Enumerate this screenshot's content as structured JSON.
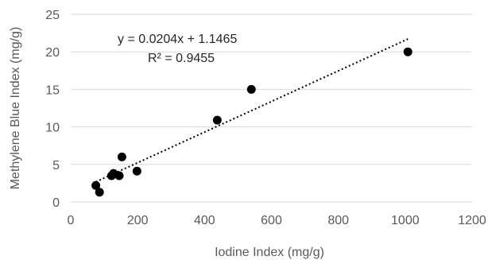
{
  "chart_data": {
    "type": "scatter",
    "title": "",
    "xlabel": "Iodine Index (mg/g)",
    "ylabel": "Methylene Blue Index (mg/g)",
    "xlim": [
      0,
      1200
    ],
    "ylim": [
      0,
      25
    ],
    "xticks": [
      0,
      200,
      400,
      600,
      800,
      1000,
      1200
    ],
    "yticks": [
      0,
      5,
      10,
      15,
      20,
      25
    ],
    "x_tick_labels": [
      "0",
      "200",
      "400",
      "600",
      "800",
      "1000",
      "1200"
    ],
    "y_tick_labels": [
      "0",
      "5",
      "10",
      "15",
      "20",
      "25"
    ],
    "grid": "horizontal",
    "legend": "none",
    "series": [
      {
        "points": [
          {
            "x": 75,
            "y": 2.2
          },
          {
            "x": 86,
            "y": 1.3
          },
          {
            "x": 122,
            "y": 3.5
          },
          {
            "x": 128,
            "y": 3.8
          },
          {
            "x": 145,
            "y": 3.5
          },
          {
            "x": 153,
            "y": 6.0
          },
          {
            "x": 198,
            "y": 4.1
          },
          {
            "x": 438,
            "y": 10.9
          },
          {
            "x": 540,
            "y": 15.0
          },
          {
            "x": 1008,
            "y": 20.0
          }
        ],
        "color": "#000000"
      }
    ],
    "trendline": {
      "type": "linear",
      "slope": 0.0204,
      "intercept": 1.1465,
      "x_range": [
        75,
        1008
      ],
      "style": "dotted",
      "color": "#000000"
    },
    "annotations": [
      "y = 0.0204x + 1.1465",
      "R² = 0.9455"
    ]
  }
}
